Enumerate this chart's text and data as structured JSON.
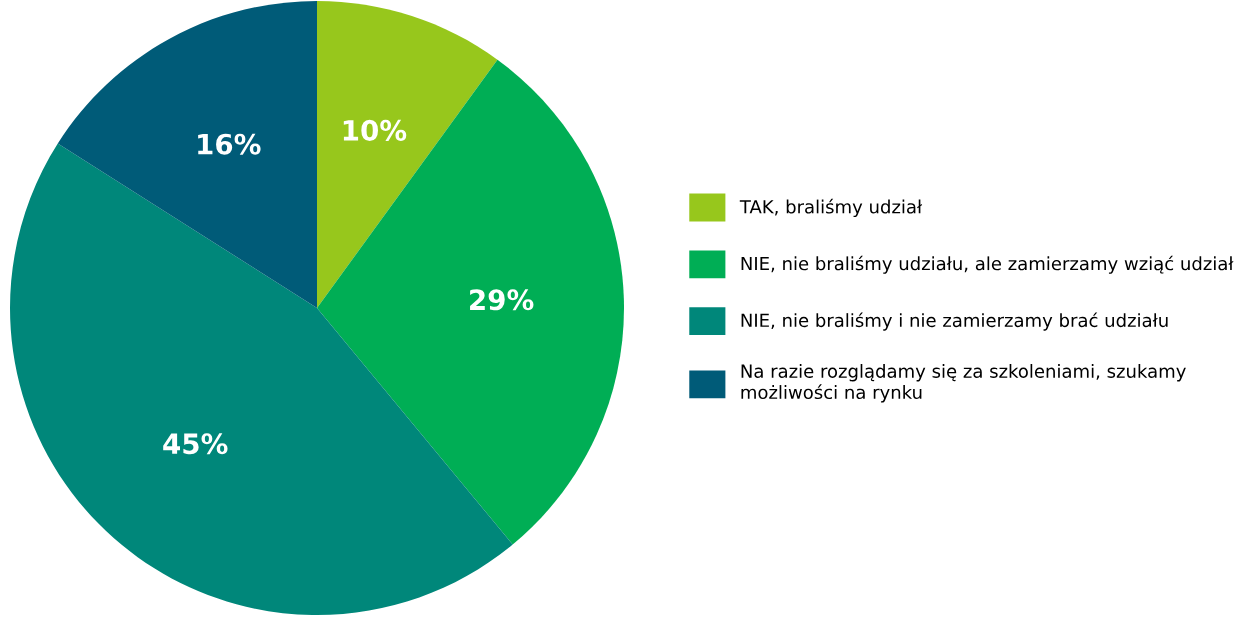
{
  "chart_data": {
    "type": "pie",
    "categories": [
      "TAK, braliśmy udział",
      "NIE, nie braliśmy udziału, ale zamierzamy wziąć udział",
      "NIE, nie braliśmy i nie zamierzamy brać udziału",
      "Na razie rozglądamy się za szkoleniami, szukamy możliwości na rynku"
    ],
    "values": [
      10,
      29,
      45,
      16
    ],
    "colors": [
      "#97c71c",
      "#00ae55",
      "#00877a",
      "#005b78"
    ],
    "value_labels": [
      "10%",
      "29%",
      "45%",
      "16%"
    ],
    "legend": "right"
  }
}
